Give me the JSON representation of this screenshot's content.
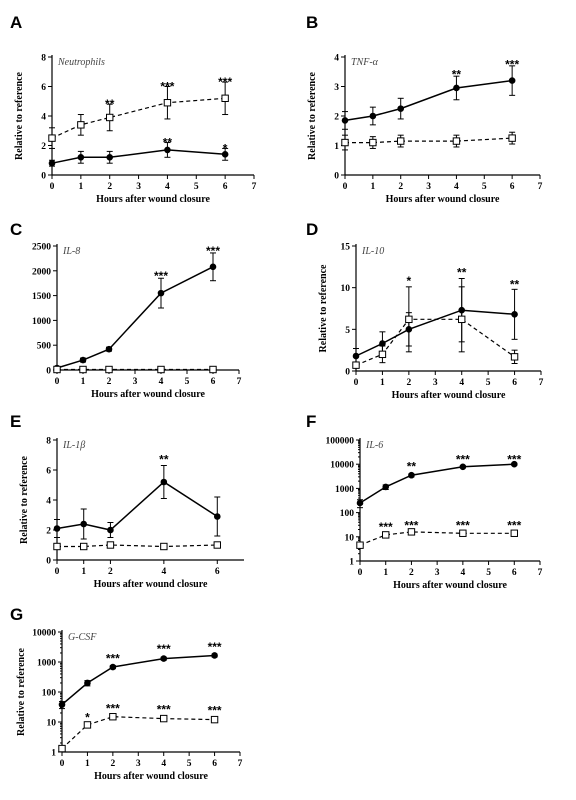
{
  "chart_data": [
    {
      "panel": "A",
      "type": "line",
      "title": "Neutrophils",
      "xlabel": "Hours after wound closure",
      "ylabel": "Relative to reference",
      "xlim": [
        0,
        7
      ],
      "ylim": [
        0,
        8
      ],
      "yscale": "linear",
      "yticks": [
        0,
        2,
        4,
        6,
        8
      ],
      "xticks": [
        0,
        1,
        2,
        3,
        4,
        5,
        6,
        7
      ],
      "series": [
        {
          "style": "solid-dot",
          "x": [
            0,
            1,
            2,
            4,
            6
          ],
          "y": [
            0.8,
            1.2,
            1.2,
            1.7,
            1.4
          ],
          "err": [
            0.2,
            0.4,
            0.4,
            0.5,
            0.4
          ]
        },
        {
          "style": "dashed-square",
          "x": [
            0,
            1,
            2,
            4,
            6
          ],
          "y": [
            2.5,
            3.4,
            3.9,
            4.9,
            5.2
          ],
          "err": [
            0.7,
            0.7,
            0.9,
            1.1,
            1.1
          ]
        }
      ],
      "annotations": [
        {
          "x": 2,
          "y": 4.8,
          "text": "**"
        },
        {
          "x": 4,
          "y": 6.0,
          "text": "***"
        },
        {
          "x": 6,
          "y": 6.3,
          "text": "***"
        },
        {
          "x": 4,
          "y": 2.2,
          "text": "**"
        },
        {
          "x": 6,
          "y": 1.8,
          "text": "*"
        }
      ]
    },
    {
      "panel": "B",
      "type": "line",
      "title": "TNF-α",
      "xlabel": "Hours after wound closure",
      "ylabel": "Relative to reference",
      "xlim": [
        0,
        7
      ],
      "ylim": [
        0,
        4
      ],
      "yscale": "linear",
      "yticks": [
        0,
        1,
        2,
        3,
        4
      ],
      "xticks": [
        0,
        1,
        2,
        3,
        4,
        5,
        6,
        7
      ],
      "series": [
        {
          "style": "solid-dot",
          "x": [
            0,
            1,
            2,
            4,
            6
          ],
          "y": [
            1.85,
            2.0,
            2.25,
            2.95,
            3.2
          ],
          "err": [
            0.3,
            0.3,
            0.35,
            0.4,
            0.5
          ]
        },
        {
          "style": "dashed-square",
          "x": [
            0,
            1,
            2,
            4,
            6
          ],
          "y": [
            1.1,
            1.1,
            1.15,
            1.15,
            1.25
          ],
          "err": [
            0.25,
            0.2,
            0.2,
            0.2,
            0.2
          ]
        }
      ],
      "annotations": [
        {
          "x": 4,
          "y": 3.4,
          "text": "**"
        },
        {
          "x": 6,
          "y": 3.75,
          "text": "***"
        }
      ]
    },
    {
      "panel": "C",
      "type": "line",
      "title": "IL-8",
      "xlabel": "Hours after wound closure",
      "ylabel": "",
      "xlim": [
        0,
        7
      ],
      "ylim": [
        0,
        2500
      ],
      "yscale": "linear",
      "yticks": [
        0,
        500,
        1000,
        1500,
        2000,
        2500
      ],
      "xticks": [
        0,
        1,
        2,
        3,
        4,
        5,
        6,
        7
      ],
      "series": [
        {
          "style": "solid-dot",
          "x": [
            0,
            1,
            2,
            4,
            6
          ],
          "y": [
            40,
            200,
            420,
            1550,
            2080
          ],
          "err": [
            20,
            40,
            40,
            300,
            280
          ]
        },
        {
          "style": "dashed-square",
          "x": [
            0,
            1,
            2,
            4,
            6
          ],
          "y": [
            10,
            10,
            10,
            10,
            10
          ],
          "err": [
            0,
            0,
            0,
            0,
            0
          ]
        }
      ],
      "annotations": [
        {
          "x": 4,
          "y": 1900,
          "text": "***"
        },
        {
          "x": 6,
          "y": 2400,
          "text": "***"
        }
      ]
    },
    {
      "panel": "D",
      "type": "line",
      "title": "IL-10",
      "xlabel": "Hours after wound closure",
      "ylabel": "Relative to reference",
      "xlim": [
        0,
        7
      ],
      "ylim": [
        0,
        15
      ],
      "yscale": "linear",
      "yticks": [
        0,
        5,
        10,
        15
      ],
      "xticks": [
        0,
        1,
        2,
        3,
        4,
        5,
        6,
        7
      ],
      "series": [
        {
          "style": "solid-dot",
          "x": [
            0,
            1,
            2,
            4,
            6
          ],
          "y": [
            1.8,
            3.3,
            5.0,
            7.3,
            6.8
          ],
          "err": [
            0.9,
            1.4,
            2.0,
            3.8,
            3.0
          ]
        },
        {
          "style": "dashed-square",
          "x": [
            0,
            1,
            2,
            4,
            6
          ],
          "y": [
            0.7,
            2.0,
            6.2,
            6.2,
            1.7
          ],
          "err": [
            0.3,
            1.0,
            3.9,
            3.9,
            0.8
          ]
        }
      ],
      "annotations": [
        {
          "x": 2,
          "y": 10.8,
          "text": "*"
        },
        {
          "x": 4,
          "y": 11.8,
          "text": "**"
        },
        {
          "x": 6,
          "y": 10.4,
          "text": "**"
        }
      ]
    },
    {
      "panel": "E",
      "type": "line",
      "title": "IL-1β",
      "xlabel": "Hours after wound closure",
      "ylabel": "Relative to reference",
      "xlim": [
        0,
        7
      ],
      "ylim": [
        0,
        8
      ],
      "yscale": "linear",
      "yticks": [
        0,
        2,
        4,
        6,
        8
      ],
      "xticks": [
        0,
        1,
        2,
        4,
        6
      ],
      "series": [
        {
          "style": "solid-dot",
          "x": [
            0,
            1,
            2,
            4,
            6
          ],
          "y": [
            2.1,
            2.4,
            2.0,
            5.2,
            2.9
          ],
          "err": [
            0.6,
            1.0,
            0.5,
            1.1,
            1.3
          ]
        },
        {
          "style": "dashed-square",
          "x": [
            0,
            1,
            2,
            4,
            6
          ],
          "y": [
            0.9,
            0.9,
            1.0,
            0.9,
            1.0
          ],
          "err": [
            0.05,
            0.05,
            0.1,
            0.05,
            0.05
          ]
        }
      ],
      "annotations": [
        {
          "x": 4,
          "y": 6.7,
          "text": "**"
        }
      ]
    },
    {
      "panel": "F",
      "type": "line",
      "title": "IL-6",
      "xlabel": "Hours after wound closure",
      "ylabel": "",
      "xlim": [
        0,
        7
      ],
      "ylim": [
        1,
        100000
      ],
      "yscale": "log",
      "yticks": [
        1,
        10,
        100,
        1000,
        10000,
        100000
      ],
      "xticks": [
        0,
        1,
        2,
        3,
        4,
        5,
        6,
        7
      ],
      "series": [
        {
          "style": "solid-dot",
          "x": [
            0,
            1,
            2,
            4,
            6
          ],
          "y": [
            250,
            1150,
            3500,
            7800,
            10000
          ],
          "err": [
            90,
            250,
            500,
            800,
            900
          ]
        },
        {
          "style": "dashed-square",
          "x": [
            0,
            1,
            2,
            4,
            6
          ],
          "y": [
            4.5,
            12,
            16,
            14,
            14
          ],
          "err": [
            0.5,
            2,
            2,
            2,
            2
          ]
        }
      ],
      "annotations": [
        {
          "x": 2,
          "y": 8000,
          "text": "**"
        },
        {
          "x": 4,
          "y": 16000,
          "text": "***"
        },
        {
          "x": 6,
          "y": 16000,
          "text": "***"
        },
        {
          "x": 1,
          "y": 26,
          "text": "***"
        },
        {
          "x": 2,
          "y": 30,
          "text": "***"
        },
        {
          "x": 4,
          "y": 30,
          "text": "***"
        },
        {
          "x": 6,
          "y": 30,
          "text": "***"
        }
      ]
    },
    {
      "panel": "G",
      "type": "line",
      "title": "G-CSF",
      "xlabel": "Hours after wound closure",
      "ylabel": "Relative to reference",
      "xlim": [
        0,
        7
      ],
      "ylim": [
        1,
        10000
      ],
      "yscale": "log",
      "yticks": [
        1,
        10,
        100,
        1000,
        10000
      ],
      "xticks": [
        0,
        1,
        2,
        3,
        4,
        5,
        6,
        7
      ],
      "series": [
        {
          "style": "solid-dot",
          "x": [
            0,
            1,
            2,
            4,
            6
          ],
          "y": [
            38,
            200,
            680,
            1300,
            1650
          ],
          "err": [
            10,
            40,
            80,
            150,
            180
          ]
        },
        {
          "style": "dashed-square",
          "x": [
            0,
            1,
            2,
            4,
            6
          ],
          "y": [
            1.3,
            8,
            15,
            13,
            12
          ],
          "err": [
            0.1,
            0.8,
            1.5,
            2,
            2
          ]
        }
      ],
      "annotations": [
        {
          "x": 2,
          "y": 1300,
          "text": "***"
        },
        {
          "x": 4,
          "y": 2700,
          "text": "***"
        },
        {
          "x": 6,
          "y": 3200,
          "text": "***"
        },
        {
          "x": 1,
          "y": 14,
          "text": "*"
        },
        {
          "x": 2,
          "y": 28,
          "text": "***"
        },
        {
          "x": 4,
          "y": 26,
          "text": "***"
        },
        {
          "x": 6,
          "y": 24,
          "text": "***"
        }
      ]
    }
  ]
}
